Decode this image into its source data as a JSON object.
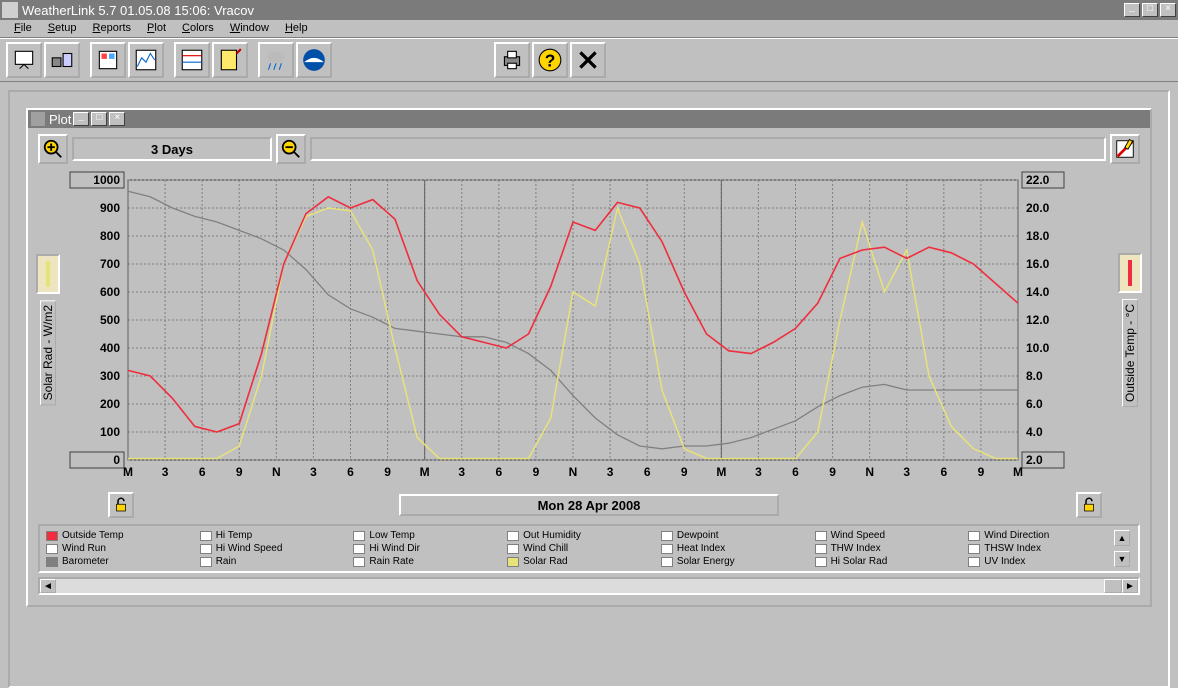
{
  "window": {
    "title": "WeatherLink 5.7  01.05.08  15:06: Vracov"
  },
  "menu": {
    "items": [
      "File",
      "Setup",
      "Reports",
      "Plot",
      "Colors",
      "Window",
      "Help"
    ]
  },
  "plot_window": {
    "title": "Plot",
    "range_label": "3 Days",
    "date_label": "Mon 28 Apr 2008"
  },
  "chart": {
    "type": "line",
    "background_color": "#c0c0c0",
    "grid_color": "#808080",
    "x_labels": [
      "M",
      "3",
      "6",
      "9",
      "N",
      "3",
      "6",
      "9",
      "M",
      "3",
      "6",
      "9",
      "N",
      "3",
      "6",
      "9",
      "M",
      "3",
      "6",
      "9",
      "N",
      "3",
      "6",
      "9",
      "M"
    ],
    "left_axis": {
      "label": "Solar Rad - W/m2",
      "min": 0,
      "max": 1000,
      "step": 100,
      "ticks": [
        "0",
        "100",
        "200",
        "300",
        "400",
        "500",
        "600",
        "700",
        "800",
        "900",
        "1000"
      ],
      "indicator_color": "#e8e27a"
    },
    "right_axis": {
      "label": "Outside Temp - °C",
      "min": 2.0,
      "max": 22.0,
      "step": 2.0,
      "ticks": [
        "2.0",
        "4.0",
        "6.0",
        "8.0",
        "10.0",
        "12.0",
        "14.0",
        "16.0",
        "18.0",
        "20.0",
        "22.0"
      ],
      "indicator_color": "#ef2d3e"
    },
    "series": {
      "outside_temp": {
        "color": "#ef2d3e",
        "axis": "right",
        "width": 1.6,
        "points": [
          [
            0,
            320
          ],
          [
            1,
            300
          ],
          [
            2,
            220
          ],
          [
            3,
            120
          ],
          [
            4,
            100
          ],
          [
            5,
            130
          ],
          [
            6,
            380
          ],
          [
            7,
            700
          ],
          [
            8,
            880
          ],
          [
            9,
            940
          ],
          [
            10,
            900
          ],
          [
            11,
            930
          ],
          [
            12,
            860
          ],
          [
            13,
            640
          ],
          [
            14,
            520
          ],
          [
            15,
            440
          ],
          [
            16,
            420
          ],
          [
            17,
            400
          ],
          [
            18,
            450
          ],
          [
            19,
            620
          ],
          [
            20,
            850
          ],
          [
            21,
            820
          ],
          [
            22,
            920
          ],
          [
            23,
            900
          ],
          [
            24,
            780
          ],
          [
            25,
            600
          ],
          [
            26,
            450
          ],
          [
            27,
            390
          ],
          [
            28,
            380
          ],
          [
            29,
            420
          ],
          [
            30,
            470
          ],
          [
            31,
            560
          ],
          [
            32,
            720
          ],
          [
            33,
            750
          ],
          [
            34,
            760
          ],
          [
            35,
            720
          ],
          [
            36,
            760
          ],
          [
            37,
            740
          ],
          [
            38,
            700
          ],
          [
            39,
            630
          ],
          [
            40,
            560
          ]
        ]
      },
      "solar_rad": {
        "color": "#e8e27a",
        "axis": "left",
        "width": 1.5,
        "points": [
          [
            0,
            5
          ],
          [
            1,
            5
          ],
          [
            2,
            5
          ],
          [
            3,
            5
          ],
          [
            4,
            5
          ],
          [
            5,
            50
          ],
          [
            6,
            300
          ],
          [
            7,
            700
          ],
          [
            8,
            870
          ],
          [
            9,
            900
          ],
          [
            10,
            890
          ],
          [
            11,
            750
          ],
          [
            12,
            400
          ],
          [
            13,
            80
          ],
          [
            14,
            5
          ],
          [
            15,
            5
          ],
          [
            16,
            5
          ],
          [
            17,
            5
          ],
          [
            18,
            5
          ],
          [
            19,
            150
          ],
          [
            20,
            600
          ],
          [
            21,
            550
          ],
          [
            22,
            900
          ],
          [
            23,
            700
          ],
          [
            24,
            250
          ],
          [
            25,
            40
          ],
          [
            26,
            5
          ],
          [
            27,
            5
          ],
          [
            28,
            5
          ],
          [
            29,
            5
          ],
          [
            30,
            5
          ],
          [
            31,
            100
          ],
          [
            32,
            500
          ],
          [
            33,
            850
          ],
          [
            34,
            600
          ],
          [
            35,
            750
          ],
          [
            36,
            300
          ],
          [
            37,
            120
          ],
          [
            38,
            40
          ],
          [
            39,
            5
          ],
          [
            40,
            5
          ]
        ]
      },
      "barometer": {
        "color": "#808080",
        "axis": "left",
        "width": 1.3,
        "points": [
          [
            0,
            960
          ],
          [
            1,
            940
          ],
          [
            2,
            900
          ],
          [
            3,
            870
          ],
          [
            4,
            850
          ],
          [
            5,
            820
          ],
          [
            6,
            790
          ],
          [
            7,
            750
          ],
          [
            8,
            680
          ],
          [
            9,
            590
          ],
          [
            10,
            540
          ],
          [
            11,
            510
          ],
          [
            12,
            470
          ],
          [
            13,
            460
          ],
          [
            14,
            450
          ],
          [
            15,
            440
          ],
          [
            16,
            440
          ],
          [
            17,
            420
          ],
          [
            18,
            380
          ],
          [
            19,
            320
          ],
          [
            20,
            230
          ],
          [
            21,
            150
          ],
          [
            22,
            90
          ],
          [
            23,
            50
          ],
          [
            24,
            40
          ],
          [
            25,
            50
          ],
          [
            26,
            50
          ],
          [
            27,
            60
          ],
          [
            28,
            80
          ],
          [
            29,
            110
          ],
          [
            30,
            140
          ],
          [
            31,
            190
          ],
          [
            32,
            230
          ],
          [
            33,
            260
          ],
          [
            34,
            270
          ],
          [
            35,
            250
          ],
          [
            36,
            250
          ],
          [
            37,
            250
          ],
          [
            38,
            250
          ],
          [
            39,
            250
          ],
          [
            40,
            250
          ]
        ]
      }
    }
  },
  "legend": {
    "rows": [
      [
        {
          "l": "Outside Temp",
          "c": "#ef2d3e",
          "on": true
        },
        {
          "l": "Hi Temp",
          "on": false
        },
        {
          "l": "Low Temp",
          "on": false
        },
        {
          "l": "Out Humidity",
          "on": false
        },
        {
          "l": "Dewpoint",
          "on": false
        },
        {
          "l": "Wind Speed",
          "on": false
        },
        {
          "l": "Wind Direction",
          "on": false
        }
      ],
      [
        {
          "l": "Wind Run",
          "on": false
        },
        {
          "l": "Hi Wind Speed",
          "on": false
        },
        {
          "l": "Hi Wind Dir",
          "on": false
        },
        {
          "l": "Wind Chill",
          "on": false
        },
        {
          "l": "Heat Index",
          "on": false
        },
        {
          "l": "THW Index",
          "on": false
        },
        {
          "l": "THSW Index",
          "on": false
        }
      ],
      [
        {
          "l": "Barometer",
          "c": "#808080",
          "on": true
        },
        {
          "l": "Rain",
          "on": false
        },
        {
          "l": "Rain Rate",
          "on": false
        },
        {
          "l": "Solar Rad",
          "c": "#e8e27a",
          "on": true
        },
        {
          "l": "Solar Energy",
          "on": false
        },
        {
          "l": "Hi Solar Rad",
          "on": false
        },
        {
          "l": "UV Index",
          "on": false
        }
      ]
    ]
  }
}
